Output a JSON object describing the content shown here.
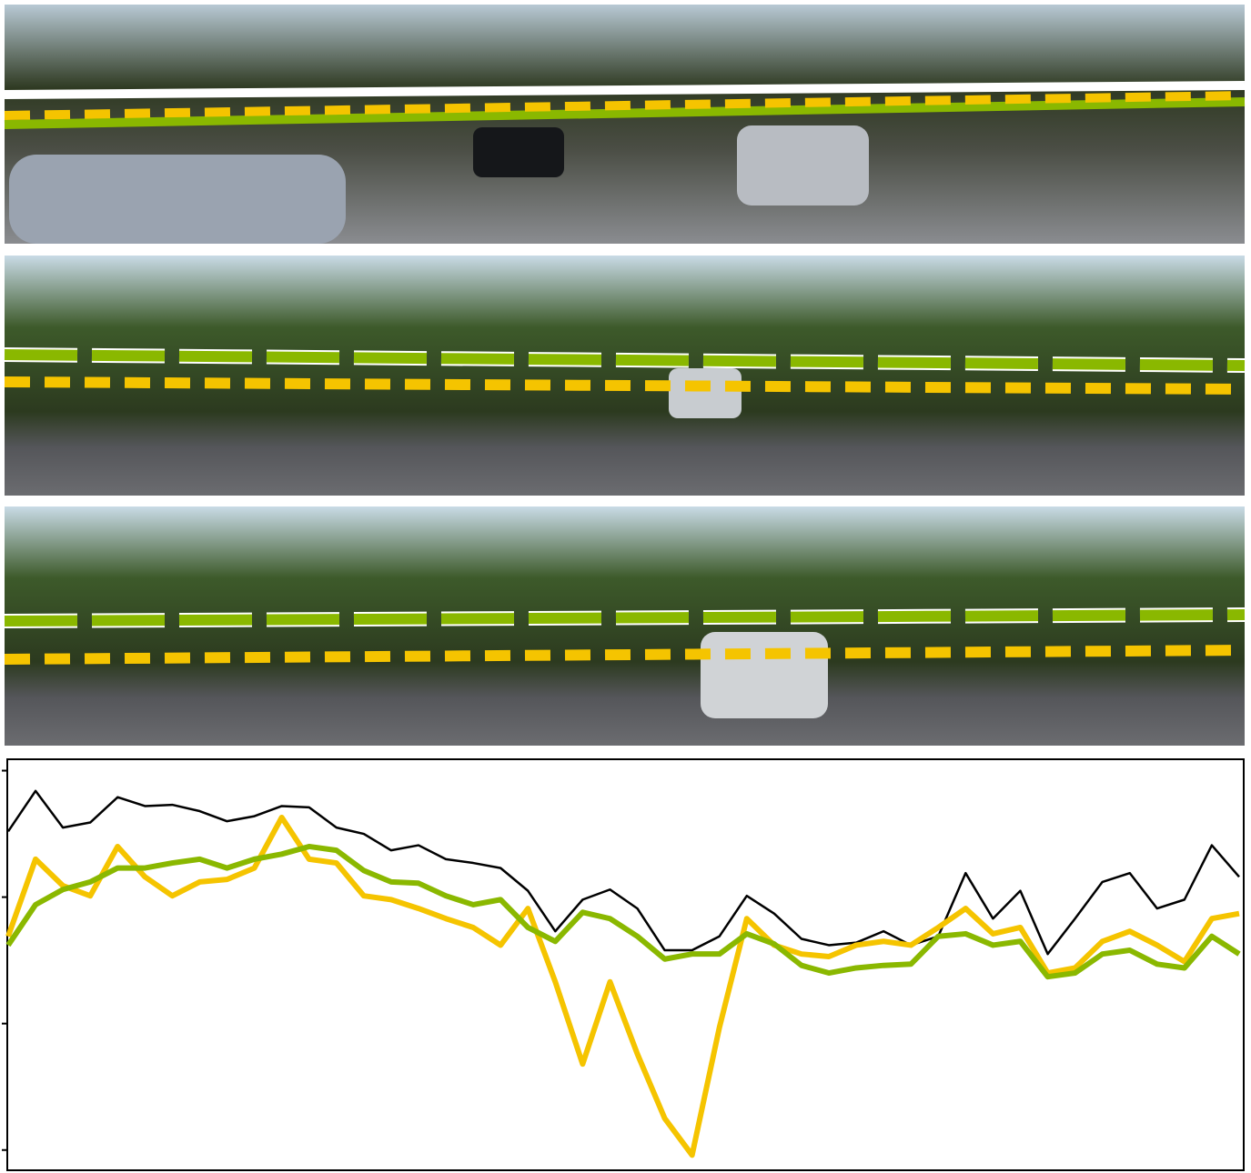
{
  "chart_data": {
    "type": "line",
    "x": [
      0,
      1,
      2,
      3,
      4,
      5,
      6,
      7,
      8,
      9,
      10,
      11,
      12,
      13,
      14,
      15,
      16,
      17,
      18,
      19,
      20,
      21,
      22,
      23,
      24,
      25,
      26,
      27,
      28,
      29,
      30,
      31,
      32,
      33,
      34,
      35,
      36,
      37,
      38,
      39,
      40,
      41,
      42,
      43,
      44,
      45
    ],
    "xlim": [
      0,
      45
    ],
    "ylim": [
      -0.16,
      3.09
    ],
    "yticks": [
      0,
      1,
      2,
      3
    ],
    "series": [
      {
        "color": "#000000",
        "values": [
          2.52,
          2.84,
          2.55,
          2.59,
          2.79,
          2.72,
          2.73,
          2.68,
          2.6,
          2.64,
          2.72,
          2.71,
          2.55,
          2.5,
          2.37,
          2.41,
          2.3,
          2.27,
          2.23,
          2.05,
          1.73,
          1.98,
          2.06,
          1.91,
          1.58,
          1.58,
          1.69,
          2.01,
          1.87,
          1.67,
          1.62,
          1.64,
          1.73,
          1.62,
          1.69,
          2.19,
          1.83,
          2.05,
          1.55,
          1.83,
          2.12,
          2.19,
          1.91,
          1.98,
          2.41,
          2.16
        ]
      },
      {
        "color": "#f5c400",
        "values": [
          1.69,
          2.3,
          2.09,
          2.01,
          2.4,
          2.16,
          2.01,
          2.12,
          2.14,
          2.23,
          2.63,
          2.3,
          2.27,
          2.01,
          1.98,
          1.91,
          1.83,
          1.76,
          1.62,
          1.91,
          1.33,
          0.68,
          1.33,
          0.76,
          0.25,
          -0.04,
          0.97,
          1.83,
          1.62,
          1.55,
          1.53,
          1.62,
          1.65,
          1.62,
          1.76,
          1.91,
          1.71,
          1.76,
          1.4,
          1.44,
          1.65,
          1.73,
          1.62,
          1.49,
          1.83,
          1.87
        ]
      },
      {
        "color": "#8ab800",
        "values": [
          1.62,
          1.94,
          2.06,
          2.12,
          2.23,
          2.23,
          2.27,
          2.3,
          2.23,
          2.3,
          2.34,
          2.4,
          2.37,
          2.21,
          2.12,
          2.11,
          2.01,
          1.94,
          1.98,
          1.76,
          1.65,
          1.88,
          1.83,
          1.69,
          1.51,
          1.55,
          1.55,
          1.71,
          1.63,
          1.46,
          1.4,
          1.44,
          1.46,
          1.47,
          1.69,
          1.71,
          1.62,
          1.65,
          1.37,
          1.4,
          1.55,
          1.58,
          1.47,
          1.44,
          1.69,
          1.55
        ]
      }
    ]
  }
}
